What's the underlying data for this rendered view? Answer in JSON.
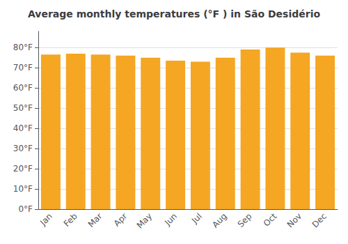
{
  "chart_data": {
    "type": "bar",
    "title": "Average monthly temperatures (°F ) in São Desidério",
    "categories": [
      "Jan",
      "Feb",
      "Mar",
      "Apr",
      "May",
      "Jun",
      "Jul",
      "Aug",
      "Sep",
      "Oct",
      "Nov",
      "Dec"
    ],
    "values": [
      76.5,
      77.0,
      76.5,
      76.0,
      75.0,
      73.5,
      73.0,
      75.0,
      79.0,
      80.0,
      77.5,
      76.0
    ],
    "color": "#F5A623",
    "ylim": [
      0,
      88
    ],
    "yticks": [
      {
        "value": 0,
        "label": "0°F"
      },
      {
        "value": 10,
        "label": "10°F"
      },
      {
        "value": 20,
        "label": "20°F"
      },
      {
        "value": 30,
        "label": "30°F"
      },
      {
        "value": 40,
        "label": "40°F"
      },
      {
        "value": 50,
        "label": "50°F"
      },
      {
        "value": 60,
        "label": "60°F"
      },
      {
        "value": 70,
        "label": "70°F"
      },
      {
        "value": 80,
        "label": "80°F"
      }
    ],
    "grid": true
  }
}
